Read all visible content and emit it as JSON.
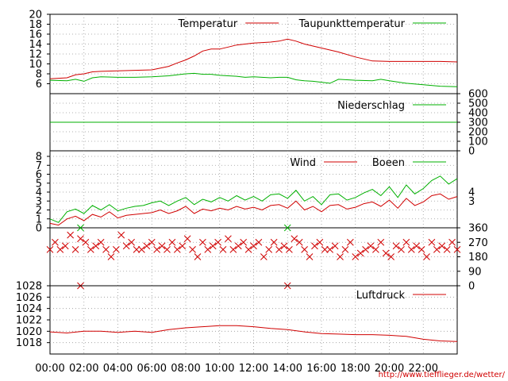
{
  "chart_data": {
    "type": "line",
    "source_url": "http://www.tiefflieger.de/wetter/",
    "colors": {
      "red": "#d00000",
      "green": "#00b000",
      "grid": "#999999",
      "frame": "#000000"
    },
    "x_axis": {
      "range_hours": [
        0,
        24
      ],
      "tick_labels": [
        "00:00",
        "02:00",
        "04:00",
        "06:00",
        "08:00",
        "10:00",
        "12:00",
        "14:00",
        "16:00",
        "18:00",
        "20:00",
        "22:00"
      ],
      "tick_hours": [
        0,
        2,
        4,
        6,
        8,
        10,
        12,
        14,
        16,
        18,
        20,
        22
      ]
    },
    "panels": [
      {
        "id": "temperature",
        "y_range": [
          4,
          20
        ],
        "y_ticks": [
          6,
          8,
          10,
          12,
          14,
          16,
          18,
          20
        ],
        "y_tick_labels": [
          "6",
          "8",
          "10",
          "12",
          "14",
          "16",
          "18",
          "20"
        ],
        "axis_side": "left",
        "series": [
          {
            "name": "Temperatur",
            "color": "red",
            "x": [
              0,
              1,
              1.5,
              2,
              2.5,
              3,
              4,
              5,
              6,
              7,
              7.5,
              8,
              8.5,
              9,
              9.5,
              10,
              10.5,
              11,
              11.5,
              12,
              12.5,
              13,
              13.5,
              14,
              14.5,
              15,
              16,
              17,
              18,
              19,
              20,
              21,
              22,
              23,
              24
            ],
            "y": [
              7.0,
              7.2,
              7.8,
              8.0,
              8.4,
              8.5,
              8.6,
              8.7,
              8.8,
              9.5,
              10.2,
              10.8,
              11.6,
              12.6,
              13.0,
              13.0,
              13.4,
              13.8,
              14.0,
              14.2,
              14.3,
              14.4,
              14.6,
              15.0,
              14.6,
              14.0,
              13.2,
              12.4,
              11.4,
              10.6,
              10.5,
              10.5,
              10.5,
              10.5,
              10.4
            ]
          },
          {
            "name": "Taupunkttemperatur",
            "color": "green",
            "x": [
              0,
              1,
              1.5,
              2,
              2.5,
              3,
              4,
              5,
              6,
              7,
              7.5,
              8,
              8.5,
              9,
              9.5,
              10,
              10.5,
              11,
              11.5,
              12,
              12.5,
              13,
              13.5,
              14,
              14.5,
              15,
              15.5,
              16,
              16.5,
              17,
              18,
              19,
              19.5,
              20,
              21,
              22,
              23,
              24
            ],
            "y": [
              6.7,
              6.6,
              6.9,
              6.5,
              7.2,
              7.4,
              7.3,
              7.3,
              7.4,
              7.6,
              7.8,
              8.0,
              8.1,
              7.9,
              7.9,
              7.7,
              7.6,
              7.5,
              7.3,
              7.4,
              7.3,
              7.2,
              7.3,
              7.3,
              6.8,
              6.6,
              6.5,
              6.3,
              6.1,
              6.9,
              6.7,
              6.6,
              6.9,
              6.6,
              6.1,
              5.8,
              5.5,
              5.4
            ]
          }
        ]
      },
      {
        "id": "precipitation",
        "y_range": [
          0,
          600
        ],
        "y_ticks": [
          0,
          100,
          200,
          300,
          400,
          500,
          600
        ],
        "y_tick_labels": [
          "0",
          "100",
          "200",
          "300",
          "400",
          "500",
          "600"
        ],
        "axis_side": "right",
        "series": [
          {
            "name": "Niederschlag",
            "color": "green",
            "x": [
              0,
              24
            ],
            "y": [
              300,
              300
            ]
          }
        ]
      },
      {
        "id": "wind",
        "y_range": [
          0,
          8
        ],
        "y_ticks": [
          0,
          1,
          2,
          3,
          4,
          5,
          6,
          7,
          8
        ],
        "y_tick_labels": [
          "0",
          "1",
          "2",
          "3",
          "4",
          "5",
          "6",
          "7",
          "8"
        ],
        "right_ticks": [
          3,
          4
        ],
        "right_tick_labels": [
          "3",
          "4"
        ],
        "axis_side": "left",
        "series": [
          {
            "name": "Wind",
            "color": "red",
            "x": [
              0,
              0.5,
              1,
              1.5,
              2,
              2.5,
              3,
              3.5,
              4,
              4.5,
              5,
              5.5,
              6,
              6.5,
              7,
              7.5,
              8,
              8.5,
              9,
              9.5,
              10,
              10.5,
              11,
              11.5,
              12,
              12.5,
              13,
              13.5,
              14,
              14.5,
              15,
              15.5,
              16,
              16.5,
              17,
              17.5,
              18,
              18.5,
              19,
              19.5,
              20,
              20.5,
              21,
              21.5,
              22,
              22.5,
              23,
              23.5,
              24
            ],
            "y": [
              0.5,
              0.3,
              1.0,
              1.3,
              0.8,
              1.5,
              1.2,
              1.8,
              1.1,
              1.4,
              1.5,
              1.6,
              1.7,
              2.0,
              1.6,
              1.9,
              2.4,
              1.6,
              2.1,
              1.9,
              2.2,
              2.0,
              2.4,
              2.1,
              2.3,
              2.0,
              2.5,
              2.6,
              2.2,
              3.0,
              2.0,
              2.4,
              1.8,
              2.5,
              2.6,
              2.1,
              2.3,
              2.7,
              2.9,
              2.4,
              3.1,
              2.2,
              3.3,
              2.5,
              2.9,
              3.6,
              3.8,
              3.2,
              3.5
            ]
          },
          {
            "name": "Boeen",
            "color": "green",
            "x": [
              0,
              0.5,
              1,
              1.5,
              2,
              2.5,
              3,
              3.5,
              4,
              4.5,
              5,
              5.5,
              6,
              6.5,
              7,
              7.5,
              8,
              8.5,
              9,
              9.5,
              10,
              10.5,
              11,
              11.5,
              12,
              12.5,
              13,
              13.5,
              14,
              14.5,
              15,
              15.5,
              16,
              16.5,
              17,
              17.5,
              18,
              18.5,
              19,
              19.5,
              20,
              20.5,
              21,
              21.5,
              22,
              22.5,
              23,
              23.5,
              24
            ],
            "y": [
              1.0,
              0.6,
              1.8,
              2.1,
              1.6,
              2.5,
              2.0,
              2.6,
              1.9,
              2.2,
              2.4,
              2.5,
              2.8,
              3.0,
              2.5,
              3.0,
              3.4,
              2.6,
              3.2,
              2.9,
              3.4,
              3.0,
              3.6,
              3.1,
              3.5,
              3.0,
              3.7,
              3.8,
              3.3,
              4.2,
              3.0,
              3.5,
              2.6,
              3.7,
              3.8,
              3.1,
              3.4,
              3.9,
              4.3,
              3.6,
              4.6,
              3.4,
              4.8,
              3.8,
              4.4,
              5.3,
              5.8,
              4.9,
              5.5
            ]
          }
        ]
      },
      {
        "id": "wind_direction",
        "y_range": [
          0,
          360
        ],
        "y_ticks": [
          0,
          90,
          180,
          270,
          360
        ],
        "y_tick_labels": [
          "0",
          "90",
          "180",
          "270",
          "360"
        ],
        "axis_side": "right",
        "series": [
          {
            "name": "",
            "color": "red",
            "marker": "x",
            "x": [
              0,
              0.3,
              0.6,
              0.9,
              1.2,
              1.5,
              1.8,
              2.1,
              2.4,
              2.7,
              3.0,
              3.3,
              3.6,
              3.9,
              4.2,
              4.5,
              4.8,
              5.1,
              5.4,
              5.7,
              6.0,
              6.3,
              6.6,
              6.9,
              7.2,
              7.5,
              7.8,
              8.1,
              8.4,
              8.7,
              9.0,
              9.3,
              9.6,
              9.9,
              10.2,
              10.5,
              10.8,
              11.1,
              11.4,
              11.7,
              12.0,
              12.3,
              12.6,
              12.9,
              13.2,
              13.5,
              13.8,
              14.1,
              14.4,
              14.7,
              15.0,
              15.3,
              15.6,
              15.9,
              16.2,
              16.5,
              16.8,
              17.1,
              17.4,
              17.7,
              18.0,
              18.3,
              18.6,
              18.9,
              19.2,
              19.5,
              19.8,
              20.1,
              20.4,
              20.7,
              21.0,
              21.3,
              21.6,
              21.9,
              22.2,
              22.5,
              22.8,
              23.1,
              23.4,
              23.7,
              24.0,
              1.8,
              14.0
            ],
            "y": [
              225,
              270,
              225,
              247,
              315,
              225,
              292,
              270,
              225,
              247,
              270,
              225,
              180,
              225,
              315,
              247,
              270,
              225,
              225,
              247,
              270,
              225,
              247,
              225,
              270,
              225,
              247,
              292,
              225,
              180,
              270,
              225,
              247,
              270,
              225,
              292,
              225,
              247,
              270,
              225,
              247,
              270,
              180,
              225,
              270,
              225,
              247,
              225,
              292,
              270,
              225,
              180,
              247,
              270,
              225,
              225,
              247,
              180,
              225,
              270,
              180,
              202,
              225,
              247,
              225,
              270,
              202,
              180,
              247,
              225,
              270,
              225,
              247,
              225,
              180,
              270,
              225,
              247,
              225,
              270,
              225,
              0,
              0
            ]
          },
          {
            "name": "",
            "color": "green",
            "marker": "x",
            "x": [
              1.8,
              14.0
            ],
            "y": [
              360,
              360
            ]
          }
        ]
      },
      {
        "id": "pressure",
        "y_range": [
          1016,
          1028
        ],
        "y_ticks": [
          1018,
          1020,
          1022,
          1024,
          1026,
          1028
        ],
        "y_tick_labels": [
          "1018",
          "1020",
          "1022",
          "1024",
          "1026",
          "1028"
        ],
        "axis_side": "left",
        "series": [
          {
            "name": "Luftdruck",
            "color": "red",
            "x": [
              0,
              1,
              2,
              3,
              4,
              5,
              6,
              7,
              8,
              9,
              10,
              11,
              12,
              13,
              14,
              15,
              16,
              17,
              18,
              19,
              20,
              21,
              22,
              23,
              24
            ],
            "y": [
              1019.9,
              1019.7,
              1020.0,
              1020.0,
              1019.8,
              1020.0,
              1019.8,
              1020.3,
              1020.6,
              1020.8,
              1021.0,
              1021.0,
              1020.8,
              1020.5,
              1020.3,
              1019.9,
              1019.6,
              1019.5,
              1019.4,
              1019.4,
              1019.3,
              1019.1,
              1018.6,
              1018.3,
              1018.2
            ]
          }
        ]
      }
    ]
  }
}
